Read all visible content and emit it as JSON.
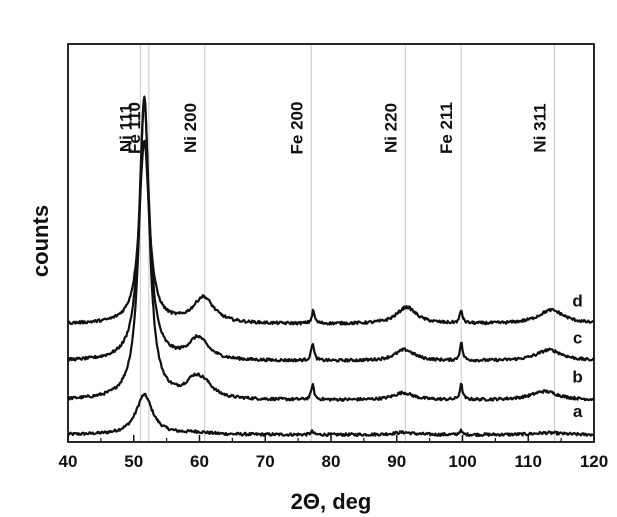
{
  "chart_data": {
    "type": "line",
    "xlabel": "2Θ, deg",
    "ylabel": "counts",
    "xlim": [
      40,
      120
    ],
    "ylim": [
      0,
      10
    ],
    "x_ticks": [
      "40",
      "50",
      "60",
      "70",
      "80",
      "90",
      "100",
      "110",
      "120"
    ],
    "grid": false,
    "reference_lines": [
      {
        "label": "Ni 111",
        "x": 51.0
      },
      {
        "label": "Fe 110",
        "x": 52.3
      },
      {
        "label": "Ni 200",
        "x": 60.8
      },
      {
        "label": "Fe 200",
        "x": 77.0
      },
      {
        "label": "Ni 220",
        "x": 91.3
      },
      {
        "label": "Fe 211",
        "x": 99.8
      },
      {
        "label": "Ni 311",
        "x": 114.0
      }
    ],
    "series": [
      {
        "name": "a",
        "baseline": 0.18,
        "peaks": [
          {
            "x": 51.6,
            "height": 1.0,
            "width": 1.5
          },
          {
            "x": 59.5,
            "height": 0.05,
            "width": 2.5
          },
          {
            "x": 77.1,
            "height": 0.08,
            "width": 0.25
          },
          {
            "x": 91.0,
            "height": 0.06,
            "width": 1.8
          },
          {
            "x": 99.7,
            "height": 0.1,
            "width": 0.25
          },
          {
            "x": 113.0,
            "height": 0.05,
            "width": 2.5
          }
        ]
      },
      {
        "name": "b",
        "baseline": 1.05,
        "peaks": [
          {
            "x": 51.6,
            "height": 7.6,
            "width": 0.9
          },
          {
            "x": 59.2,
            "height": 0.4,
            "width": 1.6
          },
          {
            "x": 60.8,
            "height": 0.28,
            "width": 1.6
          },
          {
            "x": 77.2,
            "height": 0.38,
            "width": 0.25
          },
          {
            "x": 91.0,
            "height": 0.18,
            "width": 1.8
          },
          {
            "x": 99.8,
            "height": 0.38,
            "width": 0.25
          },
          {
            "x": 112.5,
            "height": 0.22,
            "width": 2.5
          }
        ]
      },
      {
        "name": "c",
        "baseline": 2.03,
        "peaks": [
          {
            "x": 51.6,
            "height": 6.5,
            "width": 0.9
          },
          {
            "x": 59.8,
            "height": 0.55,
            "width": 1.8
          },
          {
            "x": 77.2,
            "height": 0.45,
            "width": 0.25
          },
          {
            "x": 91.2,
            "height": 0.28,
            "width": 1.8
          },
          {
            "x": 99.8,
            "height": 0.45,
            "width": 0.25
          },
          {
            "x": 113.2,
            "height": 0.28,
            "width": 2.4
          }
        ]
      },
      {
        "name": "d",
        "baseline": 2.96,
        "peaks": [
          {
            "x": 51.6,
            "height": 4.6,
            "width": 0.9
          },
          {
            "x": 60.6,
            "height": 0.65,
            "width": 1.9
          },
          {
            "x": 77.3,
            "height": 0.32,
            "width": 0.25
          },
          {
            "x": 91.5,
            "height": 0.42,
            "width": 1.8
          },
          {
            "x": 99.8,
            "height": 0.32,
            "width": 0.25
          },
          {
            "x": 113.5,
            "height": 0.35,
            "width": 2.4
          }
        ]
      }
    ]
  }
}
